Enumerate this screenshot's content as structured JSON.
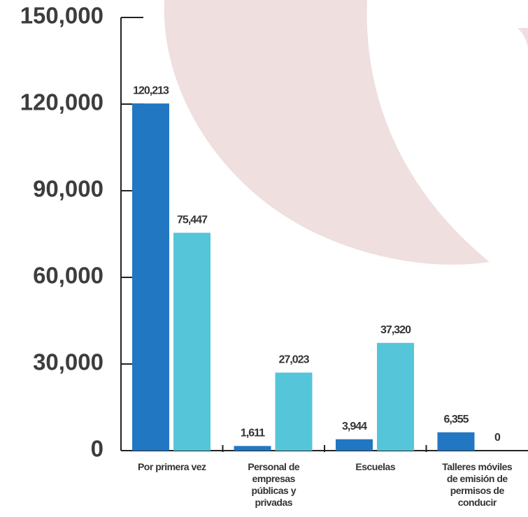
{
  "chart_data": {
    "type": "bar",
    "categories": [
      "Por primera vez",
      "Personal de empresas públicas y privadas",
      "Escuelas",
      "Talleres móviles de emisión de permisos de conducir"
    ],
    "series": [
      {
        "color": "#2277c2",
        "values": [
          120213,
          1611,
          3944,
          6355
        ],
        "value_labels": [
          "120,213",
          "1,611",
          "3,944",
          "6,355"
        ]
      },
      {
        "color": "#55c5d9",
        "values": [
          75447,
          27023,
          37320,
          0
        ],
        "value_labels": [
          "75,447",
          "27,023",
          "37,320",
          "0"
        ]
      }
    ],
    "ylim": [
      0,
      150000
    ],
    "yticks": [
      0,
      {
        "value": 30000,
        "label": "30,000"
      },
      {
        "value": 60000,
        "label": "60,000"
      },
      {
        "value": 90000,
        "label": "90,000"
      },
      {
        "value": 120000,
        "label": "120,000"
      },
      {
        "value": 150000,
        "label": "150,000"
      }
    ]
  }
}
